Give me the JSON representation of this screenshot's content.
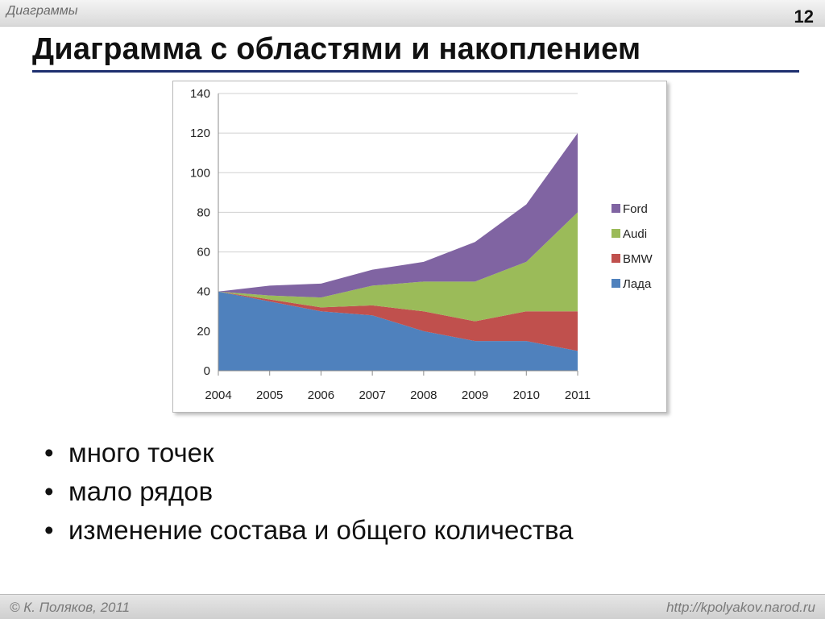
{
  "header": {
    "section": "Диаграммы",
    "page_number": "12"
  },
  "slide": {
    "title": "Диаграмма с областями и накоплением",
    "bullets": [
      "много точек",
      "мало рядов",
      "изменение состава и общего количества"
    ]
  },
  "footer": {
    "author": "© К. Поляков, 2011",
    "url": "http://kpolyakov.narod.ru"
  },
  "chart_data": {
    "type": "area",
    "stacked": true,
    "title": "",
    "xlabel": "",
    "ylabel": "",
    "ylim": [
      0,
      140
    ],
    "yticks": [
      0,
      20,
      40,
      60,
      80,
      100,
      120,
      140
    ],
    "grid": true,
    "legend_position": "right",
    "categories": [
      "2004",
      "2005",
      "2006",
      "2007",
      "2008",
      "2009",
      "2010",
      "2011"
    ],
    "series": [
      {
        "name": "Лада",
        "color": "#4f81bd",
        "values": [
          40,
          35,
          30,
          28,
          20,
          15,
          15,
          10
        ]
      },
      {
        "name": "BMW",
        "color": "#c0504d",
        "values": [
          0,
          1,
          2,
          5,
          10,
          10,
          15,
          20
        ]
      },
      {
        "name": "Audi",
        "color": "#9bbb59",
        "values": [
          0,
          2,
          5,
          10,
          15,
          20,
          25,
          50
        ]
      },
      {
        "name": "Ford",
        "color": "#8064a2",
        "values": [
          0,
          5,
          7,
          8,
          10,
          20,
          29,
          40
        ]
      }
    ]
  }
}
